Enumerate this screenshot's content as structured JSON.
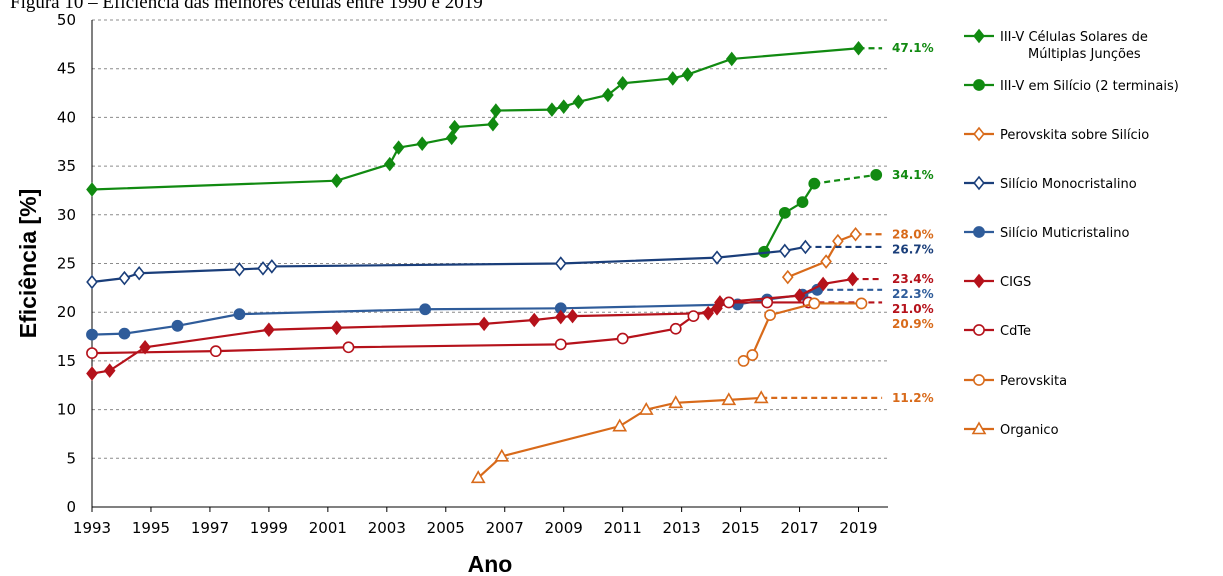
{
  "title": "Figura 10 – Eficiência das melhores células entre 1990 e 2019",
  "chart_data": {
    "type": "line",
    "title": "Figura 10 – Eficiência das melhores células entre 1990 e 2019",
    "xlabel": "Ano",
    "ylabel": "Eficiência [%]",
    "xlim": [
      1993,
      2020
    ],
    "ylim": [
      0,
      50
    ],
    "xticks": [
      "1993",
      "1995",
      "1997",
      "1999",
      "2001",
      "2003",
      "2005",
      "2007",
      "2009",
      "2011",
      "2013",
      "2015",
      "2017",
      "2019"
    ],
    "yticks": [
      "0",
      "5",
      "10",
      "15",
      "20",
      "25",
      "30",
      "35",
      "40",
      "45",
      "50"
    ],
    "grid": true,
    "legend_position": "right",
    "series": [
      {
        "name": "III-V Células Solares de Múltiplas Junções",
        "color": "#118a11",
        "marker": "diamond",
        "filled": true,
        "x": [
          1993,
          2001.3,
          2003.1,
          2003.4,
          2004.2,
          2005.2,
          2005.3,
          2006.6,
          2006.7,
          2008.6,
          2009.0,
          2009.5,
          2010.5,
          2011.0,
          2012.7,
          2013.2,
          2014.7,
          2019.0
        ],
        "y": [
          32.6,
          33.5,
          35.2,
          36.9,
          37.3,
          37.9,
          39.0,
          39.3,
          40.7,
          40.8,
          41.1,
          41.6,
          42.3,
          43.5,
          44.0,
          44.4,
          46.0,
          47.1
        ],
        "end_label": "47.1%",
        "dashed_to": 2019.8
      },
      {
        "name": "III-V em Silício (2 terminais)",
        "color": "#118a11",
        "marker": "circle",
        "filled": true,
        "x": [
          2015.8,
          2016.5,
          2017.1,
          2017.5,
          2019.6
        ],
        "y": [
          26.2,
          30.2,
          31.3,
          33.2,
          34.1
        ],
        "end_label": "34.1%",
        "dashed_from": 2017.5
      },
      {
        "name": "Perovskita sobre Silício",
        "color": "#d86a1a",
        "marker": "diamond",
        "filled": false,
        "x": [
          2016.6,
          2017.9,
          2018.3,
          2018.9
        ],
        "y": [
          23.6,
          25.2,
          27.3,
          28.0
        ],
        "end_label": "28.0%",
        "dashed_to": 2019.8
      },
      {
        "name": "Silício Monocristalino",
        "color": "#1a3e7a",
        "marker": "diamond",
        "filled": false,
        "x": [
          1993,
          1994.1,
          1994.6,
          1998.0,
          1998.8,
          1999.1,
          2008.9,
          2014.2,
          2016.5,
          2017.2
        ],
        "y": [
          23.1,
          23.5,
          24.0,
          24.4,
          24.5,
          24.7,
          25.0,
          25.6,
          26.3,
          26.7
        ],
        "end_label": "26.7%",
        "dashed_to": 2019.8
      },
      {
        "name": "Silício Muticristalino",
        "color": "#2f5c9a",
        "marker": "circle",
        "filled": true,
        "x": [
          1993,
          1994.1,
          1995.9,
          1998.0,
          2004.3,
          2008.9,
          2014.9,
          2015.9,
          2017.1,
          2017.6
        ],
        "y": [
          17.7,
          17.8,
          18.6,
          19.8,
          20.3,
          20.4,
          20.8,
          21.3,
          21.8,
          22.3
        ],
        "end_label": "22.3%",
        "dashed_to": 2019.8
      },
      {
        "name": "CIGS",
        "color": "#b5121b",
        "marker": "diamond",
        "filled": true,
        "x": [
          1993,
          1993.6,
          1994.8,
          1999.0,
          2001.3,
          2006.3,
          2008.0,
          2008.9,
          2009.3,
          2013.9,
          2014.2,
          2014.3,
          2017.0,
          2017.8,
          2018.8
        ],
        "y": [
          13.7,
          14.0,
          16.4,
          18.2,
          18.4,
          18.8,
          19.2,
          19.5,
          19.6,
          19.9,
          20.4,
          21.0,
          21.7,
          22.9,
          23.4
        ],
        "end_label": "23.4%",
        "dashed_to": 2019.8
      },
      {
        "name": "CdTe",
        "color": "#b5121b",
        "marker": "circle",
        "filled": false,
        "x": [
          1993,
          1997.2,
          2001.7,
          2008.9,
          2011.0,
          2012.8,
          2013.4,
          2014.6,
          2015.9,
          2017.3
        ],
        "y": [
          15.8,
          16.0,
          16.4,
          16.7,
          17.3,
          18.3,
          19.6,
          21.0,
          21.0,
          21.0
        ],
        "end_label": "21.0%",
        "dashed_to": 2019.8
      },
      {
        "name": "Perovskita",
        "color": "#d86a1a",
        "marker": "circle",
        "filled": false,
        "x": [
          2015.1,
          2015.4,
          2016.0,
          2017.5,
          2019.1
        ],
        "y": [
          15.0,
          15.6,
          19.7,
          20.9,
          20.9
        ],
        "end_label": "20.9%"
      },
      {
        "name": "Organico",
        "color": "#d86a1a",
        "marker": "triangle",
        "filled": false,
        "x": [
          2006.1,
          2006.9,
          2010.9,
          2011.8,
          2012.8,
          2014.6,
          2015.7
        ],
        "y": [
          3.0,
          5.2,
          8.3,
          10.0,
          10.7,
          11.0,
          11.2
        ],
        "end_label": "11.2%",
        "dashed_to": 2019.8
      }
    ]
  }
}
